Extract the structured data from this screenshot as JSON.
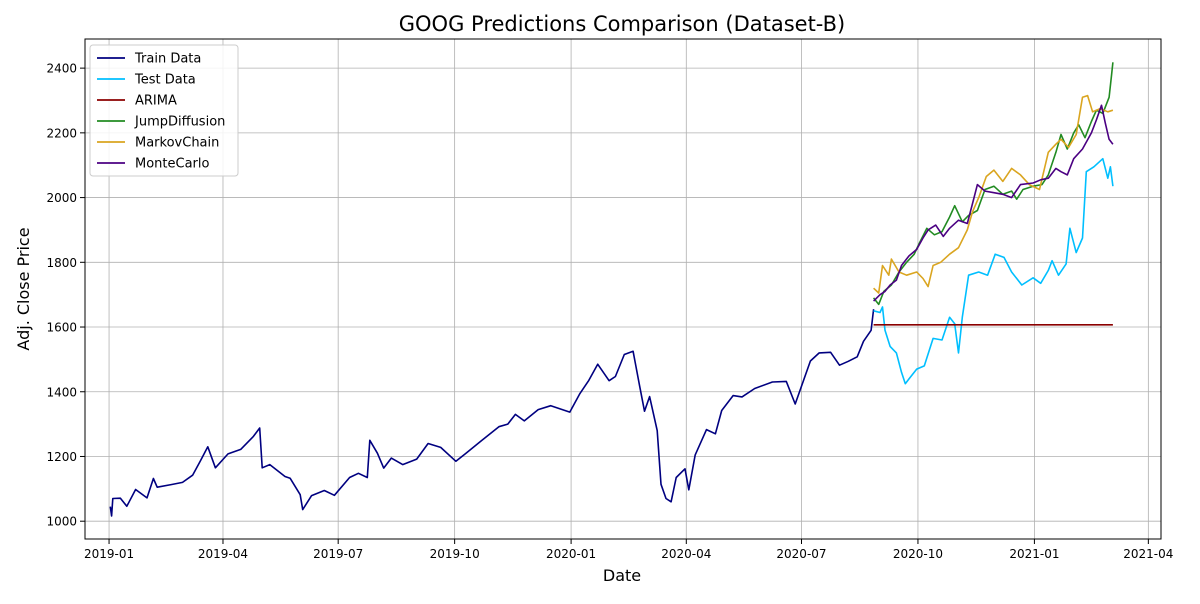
{
  "chart_data": {
    "type": "line",
    "title": "GOOG Predictions Comparison (Dataset-B)",
    "xlabel": "Date",
    "ylabel": "Adj. Close Price",
    "x_axis": {
      "type": "date",
      "range": [
        "2018-12-13",
        "2021-04-11"
      ],
      "ticks": [
        "2019-01-01",
        "2019-04-01",
        "2019-07-01",
        "2019-10-01",
        "2020-01-01",
        "2020-04-01",
        "2020-07-01",
        "2020-10-01",
        "2021-01-01",
        "2021-04-01"
      ],
      "tick_labels": [
        "2019-01",
        "2019-04",
        "2019-07",
        "2019-10",
        "2020-01",
        "2020-04",
        "2020-07",
        "2020-10",
        "2021-01",
        "2021-04"
      ]
    },
    "y_axis": {
      "range": [
        945,
        2490
      ],
      "ticks": [
        1000,
        1200,
        1400,
        1600,
        1800,
        2000,
        2200,
        2400
      ],
      "tick_labels": [
        "1000",
        "1200",
        "1400",
        "1600",
        "1800",
        "2000",
        "2200",
        "2400"
      ]
    },
    "grid": true,
    "legend_position": "top-left",
    "series": [
      {
        "name": "Train Data",
        "color": "#000080",
        "points": [
          [
            "2019-01-02",
            1045
          ],
          [
            "2019-01-03",
            1016
          ],
          [
            "2019-01-04",
            1070
          ],
          [
            "2019-01-10",
            1071
          ],
          [
            "2019-01-15",
            1046
          ],
          [
            "2019-01-22",
            1098
          ],
          [
            "2019-01-31",
            1072
          ],
          [
            "2019-02-05",
            1132
          ],
          [
            "2019-02-08",
            1105
          ],
          [
            "2019-02-19",
            1113
          ],
          [
            "2019-02-28",
            1120
          ],
          [
            "2019-03-08",
            1142
          ],
          [
            "2019-03-14",
            1185
          ],
          [
            "2019-03-20",
            1230
          ],
          [
            "2019-03-26",
            1165
          ],
          [
            "2019-04-05",
            1208
          ],
          [
            "2019-04-15",
            1222
          ],
          [
            "2019-04-25",
            1262
          ],
          [
            "2019-04-30",
            1288
          ],
          [
            "2019-05-02",
            1165
          ],
          [
            "2019-05-08",
            1175
          ],
          [
            "2019-05-20",
            1138
          ],
          [
            "2019-05-24",
            1133
          ],
          [
            "2019-06-01",
            1082
          ],
          [
            "2019-06-03",
            1036
          ],
          [
            "2019-06-10",
            1079
          ],
          [
            "2019-06-20",
            1095
          ],
          [
            "2019-06-28",
            1080
          ],
          [
            "2019-07-10",
            1135
          ],
          [
            "2019-07-17",
            1148
          ],
          [
            "2019-07-24",
            1135
          ],
          [
            "2019-07-26",
            1250
          ],
          [
            "2019-08-01",
            1210
          ],
          [
            "2019-08-06",
            1164
          ],
          [
            "2019-08-12",
            1195
          ],
          [
            "2019-08-21",
            1175
          ],
          [
            "2019-09-01",
            1192
          ],
          [
            "2019-09-10",
            1240
          ],
          [
            "2019-09-20",
            1228
          ],
          [
            "2019-10-02",
            1185
          ],
          [
            "2019-10-10",
            1210
          ],
          [
            "2019-10-22",
            1248
          ],
          [
            "2019-11-05",
            1292
          ],
          [
            "2019-11-12",
            1300
          ],
          [
            "2019-11-18",
            1330
          ],
          [
            "2019-11-25",
            1310
          ],
          [
            "2019-12-06",
            1345
          ],
          [
            "2019-12-16",
            1357
          ],
          [
            "2019-12-31",
            1337
          ],
          [
            "2020-01-08",
            1395
          ],
          [
            "2020-01-15",
            1435
          ],
          [
            "2020-01-22",
            1485
          ],
          [
            "2020-01-31",
            1434
          ],
          [
            "2020-02-05",
            1447
          ],
          [
            "2020-02-12",
            1515
          ],
          [
            "2020-02-19",
            1525
          ],
          [
            "2020-02-24",
            1420
          ],
          [
            "2020-02-28",
            1340
          ],
          [
            "2020-03-03",
            1385
          ],
          [
            "2020-03-09",
            1280
          ],
          [
            "2020-03-12",
            1114
          ],
          [
            "2020-03-16",
            1070
          ],
          [
            "2020-03-20",
            1060
          ],
          [
            "2020-03-24",
            1135
          ],
          [
            "2020-03-31",
            1162
          ],
          [
            "2020-04-03",
            1097
          ],
          [
            "2020-04-08",
            1205
          ],
          [
            "2020-04-17",
            1283
          ],
          [
            "2020-04-24",
            1270
          ],
          [
            "2020-04-29",
            1342
          ],
          [
            "2020-05-08",
            1388
          ],
          [
            "2020-05-15",
            1384
          ],
          [
            "2020-05-25",
            1410
          ],
          [
            "2020-06-08",
            1430
          ],
          [
            "2020-06-19",
            1432
          ],
          [
            "2020-06-26",
            1362
          ],
          [
            "2020-07-08",
            1495
          ],
          [
            "2020-07-15",
            1520
          ],
          [
            "2020-07-24",
            1522
          ],
          [
            "2020-07-31",
            1482
          ],
          [
            "2020-08-07",
            1494
          ],
          [
            "2020-08-14",
            1508
          ],
          [
            "2020-08-19",
            1556
          ],
          [
            "2020-08-25",
            1590
          ],
          [
            "2020-08-27",
            1655
          ]
        ]
      },
      {
        "name": "Test Data",
        "color": "#00BFFF",
        "points": [
          [
            "2020-08-27",
            1650
          ],
          [
            "2020-09-01",
            1645
          ],
          [
            "2020-09-03",
            1662
          ],
          [
            "2020-09-05",
            1590
          ],
          [
            "2020-09-09",
            1540
          ],
          [
            "2020-09-14",
            1520
          ],
          [
            "2020-09-18",
            1460
          ],
          [
            "2020-09-21",
            1425
          ],
          [
            "2020-09-24",
            1440
          ],
          [
            "2020-09-30",
            1470
          ],
          [
            "2020-10-06",
            1480
          ],
          [
            "2020-10-13",
            1565
          ],
          [
            "2020-10-20",
            1560
          ],
          [
            "2020-10-26",
            1630
          ],
          [
            "2020-10-30",
            1610
          ],
          [
            "2020-11-02",
            1520
          ],
          [
            "2020-11-05",
            1630
          ],
          [
            "2020-11-10",
            1760
          ],
          [
            "2020-11-18",
            1770
          ],
          [
            "2020-11-25",
            1760
          ],
          [
            "2020-12-01",
            1825
          ],
          [
            "2020-12-08",
            1815
          ],
          [
            "2020-12-14",
            1770
          ],
          [
            "2020-12-22",
            1730
          ],
          [
            "2020-12-31",
            1752
          ],
          [
            "2021-01-06",
            1735
          ],
          [
            "2021-01-12",
            1775
          ],
          [
            "2021-01-15",
            1805
          ],
          [
            "2021-01-20",
            1760
          ],
          [
            "2021-01-26",
            1795
          ],
          [
            "2021-01-29",
            1905
          ],
          [
            "2021-02-03",
            1830
          ],
          [
            "2021-02-08",
            1875
          ],
          [
            "2021-02-11",
            2080
          ],
          [
            "2021-02-17",
            2095
          ],
          [
            "2021-02-24",
            2120
          ],
          [
            "2021-02-28",
            2060
          ],
          [
            "2021-03-02",
            2095
          ],
          [
            "2021-03-04",
            2035
          ]
        ]
      },
      {
        "name": "ARIMA",
        "color": "#8B0000",
        "points": [
          [
            "2020-08-27",
            1607
          ],
          [
            "2021-03-04",
            1607
          ]
        ]
      },
      {
        "name": "JumpDiffusion",
        "color": "#228B22",
        "points": [
          [
            "2020-08-27",
            1690
          ],
          [
            "2020-08-31",
            1670
          ],
          [
            "2020-09-04",
            1710
          ],
          [
            "2020-09-10",
            1730
          ],
          [
            "2020-09-16",
            1770
          ],
          [
            "2020-09-22",
            1800
          ],
          [
            "2020-09-28",
            1825
          ],
          [
            "2020-10-02",
            1858
          ],
          [
            "2020-10-08",
            1905
          ],
          [
            "2020-10-14",
            1885
          ],
          [
            "2020-10-20",
            1895
          ],
          [
            "2020-10-26",
            1940
          ],
          [
            "2020-10-30",
            1975
          ],
          [
            "2020-11-05",
            1925
          ],
          [
            "2020-11-10",
            1945
          ],
          [
            "2020-11-17",
            1960
          ],
          [
            "2020-11-23",
            2025
          ],
          [
            "2020-11-30",
            2035
          ],
          [
            "2020-12-07",
            2010
          ],
          [
            "2020-12-14",
            2020
          ],
          [
            "2020-12-18",
            1995
          ],
          [
            "2020-12-23",
            2025
          ],
          [
            "2020-12-31",
            2035
          ],
          [
            "2021-01-07",
            2040
          ],
          [
            "2021-01-12",
            2070
          ],
          [
            "2021-01-18",
            2140
          ],
          [
            "2021-01-22",
            2195
          ],
          [
            "2021-01-27",
            2150
          ],
          [
            "2021-02-01",
            2200
          ],
          [
            "2021-02-05",
            2225
          ],
          [
            "2021-02-10",
            2185
          ],
          [
            "2021-02-15",
            2235
          ],
          [
            "2021-02-19",
            2270
          ],
          [
            "2021-02-24",
            2260
          ],
          [
            "2021-03-01",
            2310
          ],
          [
            "2021-03-03",
            2380
          ],
          [
            "2021-03-04",
            2418
          ]
        ]
      },
      {
        "name": "MarkovChain",
        "color": "#DAA520",
        "points": [
          [
            "2020-08-27",
            1720
          ],
          [
            "2020-08-31",
            1705
          ],
          [
            "2020-09-03",
            1790
          ],
          [
            "2020-09-08",
            1760
          ],
          [
            "2020-09-10",
            1810
          ],
          [
            "2020-09-16",
            1770
          ],
          [
            "2020-09-22",
            1760
          ],
          [
            "2020-09-30",
            1770
          ],
          [
            "2020-10-05",
            1750
          ],
          [
            "2020-10-09",
            1725
          ],
          [
            "2020-10-13",
            1790
          ],
          [
            "2020-10-19",
            1800
          ],
          [
            "2020-10-26",
            1825
          ],
          [
            "2020-11-02",
            1845
          ],
          [
            "2020-11-09",
            1900
          ],
          [
            "2020-11-13",
            1955
          ],
          [
            "2020-11-18",
            2000
          ],
          [
            "2020-11-24",
            2065
          ],
          [
            "2020-11-30",
            2085
          ],
          [
            "2020-12-07",
            2050
          ],
          [
            "2020-12-14",
            2090
          ],
          [
            "2020-12-21",
            2070
          ],
          [
            "2020-12-28",
            2040
          ],
          [
            "2021-01-05",
            2025
          ],
          [
            "2021-01-12",
            2140
          ],
          [
            "2021-01-18",
            2165
          ],
          [
            "2021-01-22",
            2180
          ],
          [
            "2021-01-28",
            2155
          ],
          [
            "2021-02-03",
            2195
          ],
          [
            "2021-02-08",
            2310
          ],
          [
            "2021-02-12",
            2315
          ],
          [
            "2021-02-16",
            2265
          ],
          [
            "2021-02-22",
            2275
          ],
          [
            "2021-02-28",
            2265
          ],
          [
            "2021-03-04",
            2270
          ]
        ]
      },
      {
        "name": "MonteCarlo",
        "color": "#4B0082",
        "points": [
          [
            "2020-08-27",
            1680
          ],
          [
            "2020-09-01",
            1700
          ],
          [
            "2020-09-05",
            1710
          ],
          [
            "2020-09-09",
            1730
          ],
          [
            "2020-09-14",
            1745
          ],
          [
            "2020-09-18",
            1790
          ],
          [
            "2020-09-24",
            1820
          ],
          [
            "2020-09-30",
            1840
          ],
          [
            "2020-10-05",
            1875
          ],
          [
            "2020-10-09",
            1900
          ],
          [
            "2020-10-15",
            1915
          ],
          [
            "2020-10-21",
            1880
          ],
          [
            "2020-10-26",
            1905
          ],
          [
            "2020-11-02",
            1930
          ],
          [
            "2020-11-09",
            1920
          ],
          [
            "2020-11-13",
            1980
          ],
          [
            "2020-11-17",
            2040
          ],
          [
            "2020-11-23",
            2020
          ],
          [
            "2020-11-30",
            2015
          ],
          [
            "2020-12-07",
            2010
          ],
          [
            "2020-12-14",
            2000
          ],
          [
            "2020-12-21",
            2040
          ],
          [
            "2020-12-31",
            2045
          ],
          [
            "2021-01-06",
            2055
          ],
          [
            "2021-01-12",
            2060
          ],
          [
            "2021-01-18",
            2090
          ],
          [
            "2021-01-22",
            2080
          ],
          [
            "2021-01-27",
            2070
          ],
          [
            "2021-02-01",
            2120
          ],
          [
            "2021-02-08",
            2150
          ],
          [
            "2021-02-15",
            2200
          ],
          [
            "2021-02-19",
            2240
          ],
          [
            "2021-02-23",
            2285
          ],
          [
            "2021-02-26",
            2230
          ],
          [
            "2021-03-01",
            2180
          ],
          [
            "2021-03-04",
            2165
          ]
        ]
      }
    ]
  }
}
